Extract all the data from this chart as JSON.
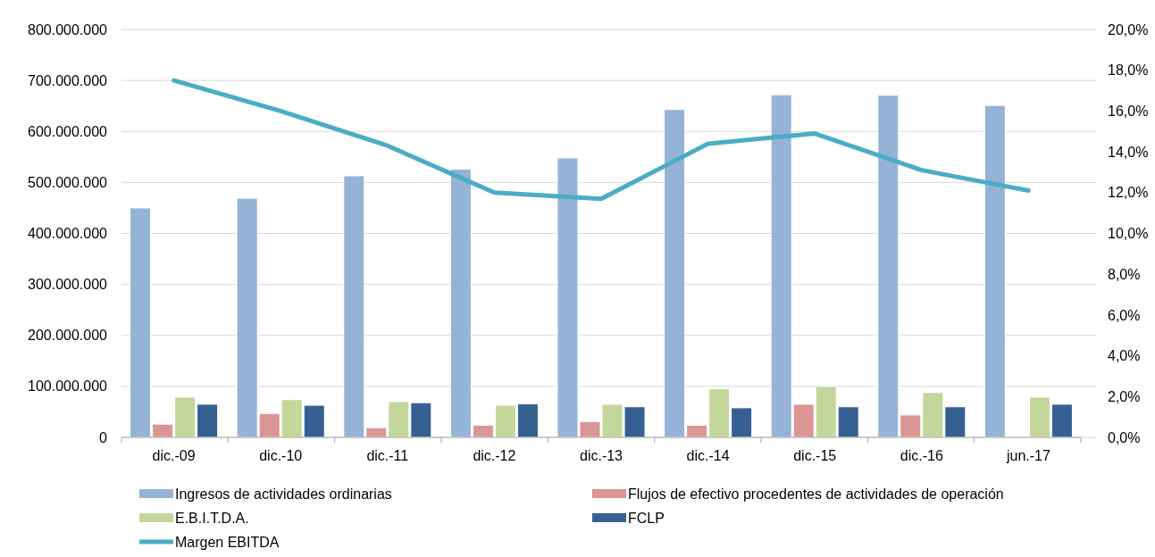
{
  "chart_data": {
    "type": "bar",
    "categories": [
      "dic.-09",
      "dic.-10",
      "dic.-11",
      "dic.-12",
      "dic.-13",
      "dic.-14",
      "dic.-15",
      "dic.-16",
      "jun.-17"
    ],
    "series": [
      {
        "name": "Ingresos de actividades ordinarias",
        "color": "#95b3d7",
        "values": [
          450000000,
          469000000,
          513000000,
          526000000,
          548000000,
          643000000,
          672000000,
          671000000,
          651000000
        ]
      },
      {
        "name": "Flujos de efectivo  procedentes de actividades de operación",
        "color": "#da9694",
        "values": [
          26000000,
          47000000,
          19000000,
          24000000,
          31000000,
          24000000,
          65000000,
          44000000,
          null
        ]
      },
      {
        "name": "E.B.I.T.D.A.",
        "color": "#c4d79b",
        "values": [
          79000000,
          74000000,
          70000000,
          63000000,
          65000000,
          95000000,
          100000000,
          88000000,
          79000000
        ]
      },
      {
        "name": "FCLP",
        "color": "#366092",
        "values": [
          65000000,
          63000000,
          68000000,
          66000000,
          60000000,
          58000000,
          60000000,
          60000000,
          65000000
        ]
      },
      {
        "name": "Margen EBITDA",
        "type": "line",
        "axis": "y2",
        "color": "#4bacc6",
        "values": [
          17.5,
          16.0,
          14.3,
          12.0,
          11.7,
          14.4,
          14.9,
          13.1,
          12.1
        ]
      }
    ],
    "ylim": [
      0,
      800000000
    ],
    "yticks": [
      {
        "value": 0,
        "label": "0"
      },
      {
        "value": 100000000,
        "label": "100.000.000"
      },
      {
        "value": 200000000,
        "label": "200.000.000"
      },
      {
        "value": 300000000,
        "label": "300.000.000"
      },
      {
        "value": 400000000,
        "label": "400.000.000"
      },
      {
        "value": 500000000,
        "label": "500.000.000"
      },
      {
        "value": 600000000,
        "label": "600.000.000"
      },
      {
        "value": 700000000,
        "label": "700.000.000"
      },
      {
        "value": 800000000,
        "label": "800.000.000"
      }
    ],
    "y2lim": [
      0,
      20
    ],
    "y2ticks": [
      {
        "value": 0,
        "label": "0,0%"
      },
      {
        "value": 2,
        "label": "2,0%"
      },
      {
        "value": 4,
        "label": "4,0%"
      },
      {
        "value": 6,
        "label": "6,0%"
      },
      {
        "value": 8,
        "label": "8,0%"
      },
      {
        "value": 10,
        "label": "10,0%"
      },
      {
        "value": 12,
        "label": "12,0%"
      },
      {
        "value": 14,
        "label": "14,0%"
      },
      {
        "value": 16,
        "label": "16,0%"
      },
      {
        "value": 18,
        "label": "18,0%"
      },
      {
        "value": 20,
        "label": "20,0%"
      }
    ],
    "grid": "y",
    "legend": "bottom",
    "marker": "none"
  }
}
